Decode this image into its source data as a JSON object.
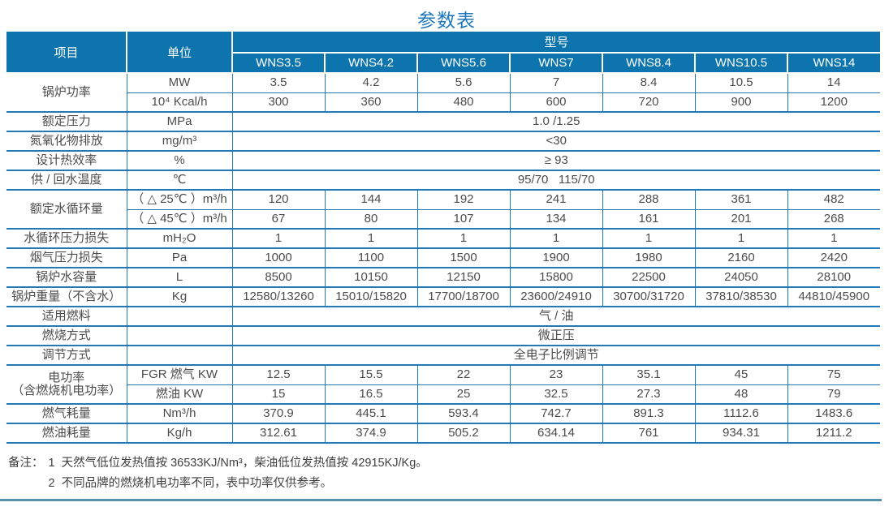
{
  "page": {
    "title": "参数表",
    "colors": {
      "header_bg": "#0e74ad",
      "border_blue": "#1f7ab7",
      "title_blue": "#1f78bc",
      "text_gray": "#4c4c4c",
      "rule_teal": "#5493ab"
    }
  },
  "table": {
    "header": {
      "item_label": "项目",
      "unit_label": "单位",
      "model_label": "型号",
      "models": [
        "WNS3.5",
        "WNS4.2",
        "WNS5.6",
        "WNS7",
        "WNS8.4",
        "WNS10.5",
        "WNS14"
      ]
    },
    "groups": [
      {
        "label": "锅炉功率",
        "rows": [
          {
            "unit": "MW",
            "values": [
              "3.5",
              "4.2",
              "5.6",
              "7",
              "8.4",
              "10.5",
              "14"
            ]
          },
          {
            "unit": "10⁴ Kcal/h",
            "values": [
              "300",
              "360",
              "480",
              "600",
              "720",
              "900",
              "1200"
            ]
          }
        ]
      },
      {
        "label": "额定压力",
        "rows": [
          {
            "unit": "MPa",
            "span": "1.0 /1.25"
          }
        ]
      },
      {
        "label": "氮氧化物排放",
        "rows": [
          {
            "unit": "mg/m³",
            "span": "<30"
          }
        ]
      },
      {
        "label": "设计热效率",
        "rows": [
          {
            "unit": "%",
            "span": "≥ 93"
          }
        ]
      },
      {
        "label": "供 / 回水温度",
        "rows": [
          {
            "unit": "℃",
            "span": "95/70   115/70"
          }
        ]
      },
      {
        "label": "额定水循环量",
        "rows": [
          {
            "unit": "（ △ 25℃ ）m³/h",
            "values": [
              "120",
              "144",
              "192",
              "241",
              "288",
              "361",
              "482"
            ]
          },
          {
            "unit": "（ △ 45℃ ）m³/h",
            "values": [
              "67",
              "80",
              "107",
              "134",
              "161",
              "201",
              "268"
            ]
          }
        ]
      },
      {
        "label": "水循环压力损失",
        "rows": [
          {
            "unit": "mH₂O",
            "values": [
              "1",
              "1",
              "1",
              "1",
              "1",
              "1",
              "1"
            ]
          }
        ]
      },
      {
        "label": "烟气压力损失",
        "rows": [
          {
            "unit": "Pa",
            "values": [
              "1000",
              "1100",
              "1500",
              "1900",
              "1980",
              "2160",
              "2420"
            ]
          }
        ]
      },
      {
        "label": "锅炉水容量",
        "rows": [
          {
            "unit": "L",
            "values": [
              "8500",
              "10150",
              "12150",
              "15800",
              "22500",
              "24050",
              "28100"
            ]
          }
        ]
      },
      {
        "label": "锅炉重量（不含水）",
        "rows": [
          {
            "unit": "Kg",
            "values": [
              "12580/13260",
              "15010/15820",
              "17700/18700",
              "23600/24910",
              "30700/31720",
              "37810/38530",
              "44810/45900"
            ]
          }
        ]
      },
      {
        "label": "适用燃料",
        "rows": [
          {
            "unit": "",
            "span": "气 / 油"
          }
        ]
      },
      {
        "label": "燃烧方式",
        "rows": [
          {
            "unit": "",
            "span": "微正压"
          }
        ]
      },
      {
        "label": "调节方式",
        "rows": [
          {
            "unit": "",
            "span": "全电子比例调节"
          }
        ]
      },
      {
        "label": "电功率\n（含燃烧机电功率）",
        "rows": [
          {
            "unit": "FGR 燃气 KW",
            "values": [
              "12.5",
              "15.5",
              "22",
              "23",
              "35.1",
              "45",
              "75"
            ]
          },
          {
            "unit": "燃油 KW",
            "values": [
              "15",
              "16.5",
              "25",
              "32.5",
              "27.3",
              "48",
              "79"
            ]
          }
        ]
      },
      {
        "label": "燃气耗量",
        "rows": [
          {
            "unit": "Nm³/h",
            "values": [
              "370.9",
              "445.1",
              "593.4",
              "742.7",
              "891.3",
              "1112.6",
              "1483.6"
            ]
          }
        ]
      },
      {
        "label": "燃油耗量",
        "rows": [
          {
            "unit": "Kg/h",
            "values": [
              "312.61",
              "374.9",
              "505.2",
              "634.14",
              "761",
              "934.31",
              "1211.2"
            ]
          }
        ]
      }
    ]
  },
  "notes": {
    "label": "备注：",
    "items": [
      {
        "num": "1",
        "text": "天然气低位发热值按 36533KJ/Nm³，柴油低位发热值按 42915KJ/Kg。"
      },
      {
        "num": "2",
        "text": "不同品牌的燃烧机电功率不同，表中功率仅供参考。"
      }
    ]
  }
}
